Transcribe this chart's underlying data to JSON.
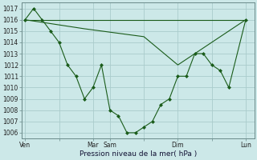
{
  "bg_color": "#cce8e8",
  "grid_color": "#aacccc",
  "line_color": "#1a5c1a",
  "marker_color": "#1a5c1a",
  "xlabel": "Pression niveau de la mer( hPa )",
  "ylim": [
    1005.5,
    1017.5
  ],
  "yticks": [
    1006,
    1007,
    1008,
    1009,
    1010,
    1011,
    1012,
    1013,
    1014,
    1015,
    1016,
    1017
  ],
  "xtick_labels": [
    "Ven",
    "",
    "Mar",
    "Sam",
    "",
    "Dim",
    "",
    "Lun"
  ],
  "xtick_positions": [
    0,
    2,
    4,
    5,
    7,
    9,
    11,
    13
  ],
  "xlim": [
    -0.2,
    13.5
  ],
  "series_main": {
    "x": [
      0,
      0.5,
      1.0,
      1.5,
      2.0,
      2.5,
      3.0,
      3.5,
      4.0,
      4.5,
      5.0,
      5.5,
      6.0,
      6.5,
      7.0,
      7.5,
      8.0,
      8.5,
      9.0,
      9.5,
      10.0,
      10.5,
      11.0,
      11.5,
      12.0,
      13.0
    ],
    "y": [
      1016,
      1017,
      1016,
      1015,
      1014,
      1012,
      1011,
      1009,
      1010,
      1012,
      1008,
      1007.5,
      1006,
      1006,
      1006.5,
      1007,
      1008.5,
      1009,
      1011,
      1011,
      1013,
      1013,
      1012,
      1011.5,
      1010,
      1016
    ]
  },
  "series_flat": {
    "x": [
      0,
      13.0
    ],
    "y": [
      1016,
      1016
    ]
  },
  "series_slope": {
    "x": [
      0,
      3.5,
      7.0,
      9.0,
      13.0
    ],
    "y": [
      1016,
      1015.2,
      1014.5,
      1012,
      1016
    ]
  }
}
